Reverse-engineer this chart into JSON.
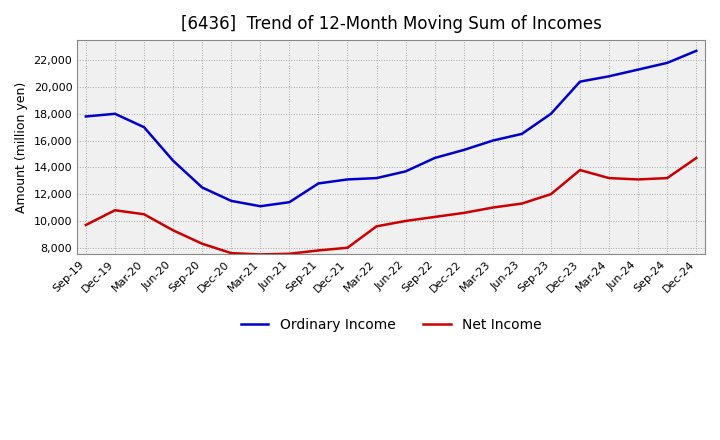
{
  "title": "[6436]  Trend of 12-Month Moving Sum of Incomes",
  "ylabel": "Amount (million yen)",
  "background_color": "#ffffff",
  "plot_bg_color": "#f0f0f0",
  "grid_color": "#aaaaaa",
  "x_labels": [
    "Sep-19",
    "Dec-19",
    "Mar-20",
    "Jun-20",
    "Sep-20",
    "Dec-20",
    "Mar-21",
    "Jun-21",
    "Sep-21",
    "Dec-21",
    "Mar-22",
    "Jun-22",
    "Sep-22",
    "Dec-22",
    "Mar-23",
    "Jun-23",
    "Sep-23",
    "Dec-23",
    "Mar-24",
    "Jun-24",
    "Sep-24",
    "Dec-24"
  ],
  "ordinary_income": [
    17800,
    18000,
    17000,
    14500,
    12500,
    11500,
    11100,
    11400,
    12800,
    13100,
    13200,
    13700,
    14700,
    15300,
    16000,
    16500,
    18000,
    20400,
    20800,
    21300,
    21800,
    22700
  ],
  "net_income": [
    9700,
    10800,
    10500,
    9300,
    8300,
    7600,
    7500,
    7550,
    7800,
    8000,
    9600,
    10000,
    10300,
    10600,
    11000,
    11300,
    12000,
    13800,
    13200,
    13100,
    13200,
    14700
  ],
  "ordinary_color": "#0000cc",
  "net_color": "#cc0000",
  "ylim": [
    7500,
    23500
  ],
  "yticks": [
    8000,
    10000,
    12000,
    14000,
    16000,
    18000,
    20000,
    22000
  ],
  "title_fontsize": 12,
  "axis_fontsize": 9,
  "tick_fontsize": 8,
  "legend_fontsize": 10,
  "line_width": 1.8
}
